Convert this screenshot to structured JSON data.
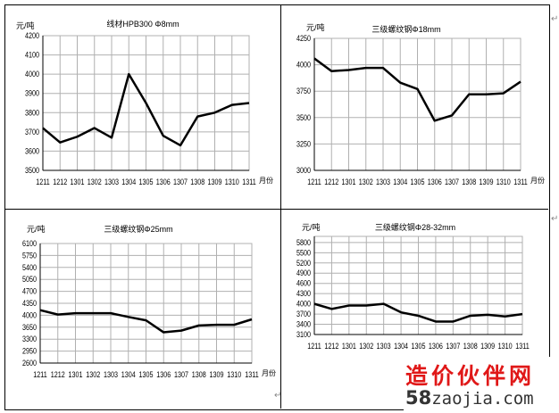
{
  "chart_data": [
    {
      "type": "line",
      "title": "线材HPB300 Φ8mm",
      "ylabel": "元/吨",
      "xlabel": "月份",
      "categories": [
        "1211",
        "1212",
        "1301",
        "1302",
        "1303",
        "1304",
        "1305",
        "1306",
        "1307",
        "1308",
        "1309",
        "1310",
        "1311"
      ],
      "values": [
        3720,
        3645,
        3675,
        3720,
        3670,
        4000,
        3850,
        3680,
        3630,
        3780,
        3800,
        3840,
        3850
      ],
      "ylim": [
        3500,
        4200
      ],
      "yticks": [
        3500,
        3600,
        3700,
        3800,
        3900,
        4000,
        4100,
        4200
      ],
      "grid": true
    },
    {
      "type": "line",
      "title": "三级螺纹钢Φ18mm",
      "ylabel": "元/吨",
      "xlabel": "月份",
      "categories": [
        "1211",
        "1212",
        "1301",
        "1302",
        "1303",
        "1304",
        "1305",
        "1306",
        "1307",
        "1308",
        "1309",
        "1310",
        "1311"
      ],
      "values": [
        4060,
        3940,
        3950,
        3970,
        3970,
        3830,
        3770,
        3470,
        3520,
        3720,
        3720,
        3730,
        3840
      ],
      "ylim": [
        3000,
        4250
      ],
      "yticks": [
        3000,
        3250,
        3500,
        3750,
        4000,
        4250
      ],
      "grid": true
    },
    {
      "type": "line",
      "title": "三级螺纹钢Φ25mm",
      "ylabel": "元/吨",
      "xlabel": "月份",
      "categories": [
        "1211",
        "1212",
        "1301",
        "1302",
        "1303",
        "1304",
        "1305",
        "1306",
        "1307",
        "1308",
        "1309",
        "1310",
        "1311"
      ],
      "values": [
        4150,
        4020,
        4060,
        4060,
        4060,
        3950,
        3850,
        3500,
        3550,
        3700,
        3720,
        3720,
        3880
      ],
      "ylim": [
        2600,
        6100
      ],
      "yticks": [
        2600,
        2950,
        3300,
        3650,
        4000,
        4350,
        4700,
        5050,
        5400,
        5750,
        6100
      ],
      "grid": true
    },
    {
      "type": "line",
      "title": "三级螺纹钢Φ28-32mm",
      "ylabel": "元/吨",
      "xlabel": "",
      "categories": [
        "1211",
        "1212",
        "1301",
        "1302",
        "1303",
        "1304",
        "1305",
        "1306",
        "1307",
        "1308",
        "1309",
        "1310",
        "1311"
      ],
      "values": [
        4000,
        3850,
        3950,
        3950,
        4000,
        3750,
        3650,
        3480,
        3480,
        3650,
        3680,
        3630,
        3700
      ],
      "ylim": [
        3100,
        5980
      ],
      "yticks": [
        3100,
        3400,
        3700,
        4000,
        4300,
        4600,
        4900,
        5200,
        5500,
        5800
      ],
      "grid": true
    }
  ],
  "watermark": {
    "cn": "造价伙伴网",
    "num": "58",
    "domain": "zaojia.com"
  }
}
